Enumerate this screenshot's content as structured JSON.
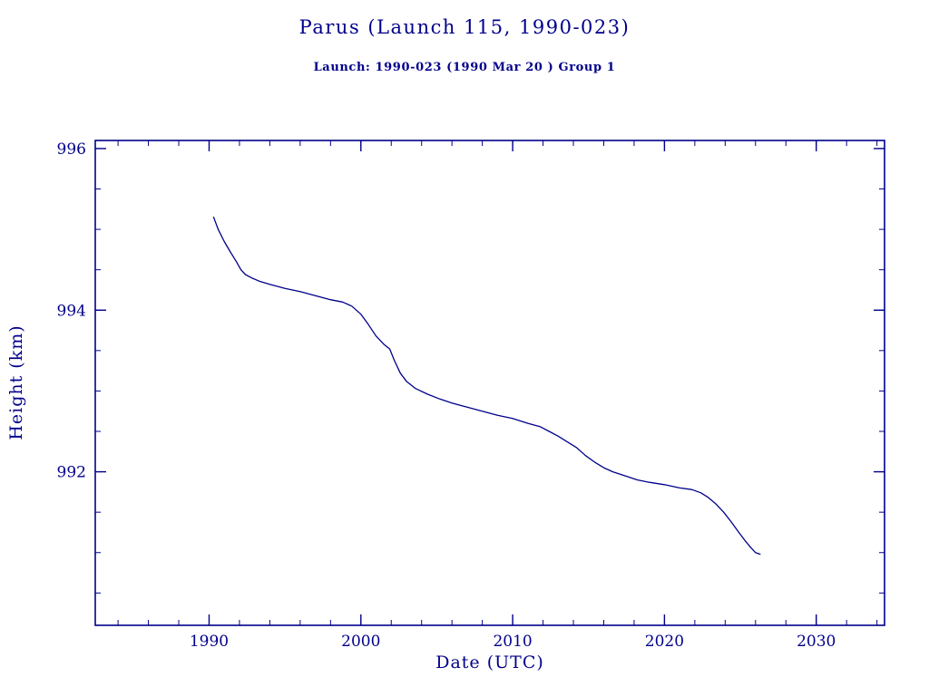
{
  "header": {
    "title": "Parus (Launch 115, 1990-023)",
    "subtitle": "Launch: 1990-023  (1990 Mar 20 )  Group 1"
  },
  "colors": {
    "accent": "#00008B",
    "background": "#ffffff"
  },
  "chart_data": {
    "type": "line",
    "title": "Parus (Launch 115, 1990-023)",
    "subtitle": "Launch: 1990-023  (1990 Mar 20 )  Group 1",
    "xlabel": "Date (UTC)",
    "ylabel": "Height (km)",
    "xlim": [
      1982.5,
      2034.5
    ],
    "ylim": [
      990.1,
      996.1
    ],
    "x_major_ticks": [
      1990,
      2000,
      2010,
      2020,
      2030
    ],
    "y_major_ticks": [
      992,
      994,
      996
    ],
    "x_minor_step": 2,
    "y_minor_step": 0.5,
    "grid": false,
    "legend": "none",
    "line_color": "#00008B",
    "series": [
      {
        "name": "orbital-height",
        "x": [
          1990.3,
          1990.6,
          1991.0,
          1991.4,
          1991.8,
          1992.1,
          1992.4,
          1992.8,
          1993.3,
          1994.0,
          1995.0,
          1996.0,
          1997.0,
          1998.0,
          1998.8,
          1999.4,
          2000.0,
          2000.5,
          2001.0,
          2001.5,
          2001.9,
          2002.2,
          2002.6,
          2003.0,
          2003.6,
          2004.4,
          2005.2,
          2006.0,
          2007.0,
          2008.0,
          2009.0,
          2010.0,
          2011.0,
          2011.8,
          2012.4,
          2013.0,
          2013.6,
          2014.2,
          2014.8,
          2015.4,
          2016.0,
          2016.6,
          2017.4,
          2018.2,
          2019.0,
          2020.0,
          2021.0,
          2021.8,
          2022.4,
          2022.9,
          2023.4,
          2023.9,
          2024.4,
          2024.9,
          2025.3,
          2025.7,
          2026.0,
          2026.3
        ],
        "y": [
          995.15,
          995.0,
          994.85,
          994.72,
          994.6,
          994.5,
          994.44,
          994.4,
          994.36,
          994.32,
          994.27,
          994.23,
          994.18,
          994.13,
          994.1,
          994.05,
          993.95,
          993.82,
          993.68,
          993.58,
          993.52,
          993.38,
          993.22,
          993.12,
          993.03,
          992.96,
          992.9,
          992.85,
          992.8,
          992.75,
          992.7,
          992.66,
          992.6,
          992.56,
          992.5,
          992.44,
          992.37,
          992.3,
          992.2,
          992.12,
          992.05,
          992.0,
          991.95,
          991.9,
          991.87,
          991.84,
          991.8,
          991.78,
          991.74,
          991.68,
          991.6,
          991.5,
          991.38,
          991.25,
          991.15,
          991.06,
          991.0,
          990.98
        ]
      }
    ]
  }
}
